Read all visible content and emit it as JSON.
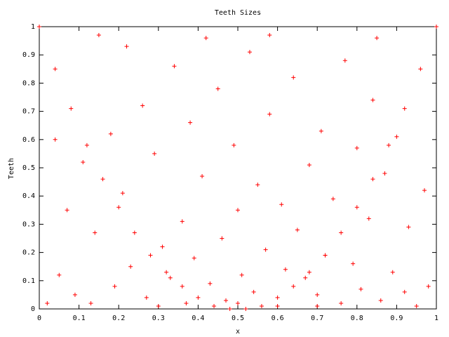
{
  "chart_data": {
    "type": "scatter",
    "title": "Teeth Sizes",
    "x_label": "x",
    "y_label": "Teeth",
    "color": "#ff0000",
    "x": [
      0,
      0.04,
      0.08,
      0.12,
      0.16,
      0.2,
      0.24,
      0.28,
      0.32,
      0.36,
      0.4,
      0.44,
      0.48,
      1,
      0.96,
      0.92,
      0.88,
      0.84,
      0.8,
      0.76,
      0.72,
      0.68,
      0.64,
      0.6,
      0.56,
      0.52,
      0.05,
      0.07,
      0.09,
      0.11,
      0.13,
      0.14,
      0.18,
      0.19,
      0.21,
      0.22,
      0.23,
      0.26,
      0.27,
      0.29,
      0.31,
      0.33,
      0.34,
      0.36,
      0.37,
      0.38,
      0.39,
      0.41,
      0.43,
      0.45,
      0.46,
      0.47,
      0.49,
      0.5,
      0.51,
      0.53,
      0.54,
      0.55,
      0.57,
      0.58,
      0.6,
      0.61,
      0.62,
      0.64,
      0.65,
      0.67,
      0.68,
      0.7,
      0.71,
      0.72,
      0.74,
      0.76,
      0.77,
      0.79,
      0.8,
      0.81,
      0.83,
      0.84,
      0.86,
      0.87,
      0.89,
      0.9,
      0.92,
      0.93,
      0.95,
      0.97,
      0.02,
      0.04,
      0.15,
      0.42,
      0.58,
      0.85,
      0.98,
      0.3,
      0.7,
      0.5
    ],
    "values": [
      1,
      0.85,
      0.71,
      0.58,
      0.46,
      0.36,
      0.27,
      0.19,
      0.13,
      0.08,
      0.04,
      0.01,
      0,
      1,
      0.85,
      0.71,
      0.58,
      0.46,
      0.36,
      0.27,
      0.19,
      0.13,
      0.08,
      0.04,
      0.01,
      0,
      0.12,
      0.35,
      0.05,
      0.52,
      0.02,
      0.27,
      0.62,
      0.08,
      0.41,
      0.93,
      0.15,
      0.72,
      0.04,
      0.55,
      0.22,
      0.11,
      0.86,
      0.31,
      0.02,
      0.66,
      0.18,
      0.47,
      0.09,
      0.78,
      0.25,
      0.03,
      0.58,
      0.35,
      0.12,
      0.91,
      0.06,
      0.44,
      0.21,
      0.69,
      0.01,
      0.37,
      0.14,
      0.82,
      0.28,
      0.11,
      0.51,
      0.05,
      0.63,
      0.19,
      0.39,
      0.02,
      0.88,
      0.16,
      0.57,
      0.07,
      0.32,
      0.74,
      0.03,
      0.48,
      0.13,
      0.61,
      0.06,
      0.29,
      0.01,
      0.42,
      0.02,
      0.6,
      0.97,
      0.96,
      0.97,
      0.96,
      0.08,
      0.01,
      0.01,
      0.02
    ],
    "xlim": [
      0,
      1
    ],
    "ylim": [
      0,
      1
    ],
    "xticks": [
      0,
      0.1,
      0.2,
      0.3,
      0.4,
      0.5,
      0.6,
      0.7,
      0.8,
      0.9,
      1
    ],
    "yticks": [
      0,
      0.1,
      0.2,
      0.3,
      0.4,
      0.5,
      0.6,
      0.7,
      0.8,
      0.9,
      1
    ]
  }
}
